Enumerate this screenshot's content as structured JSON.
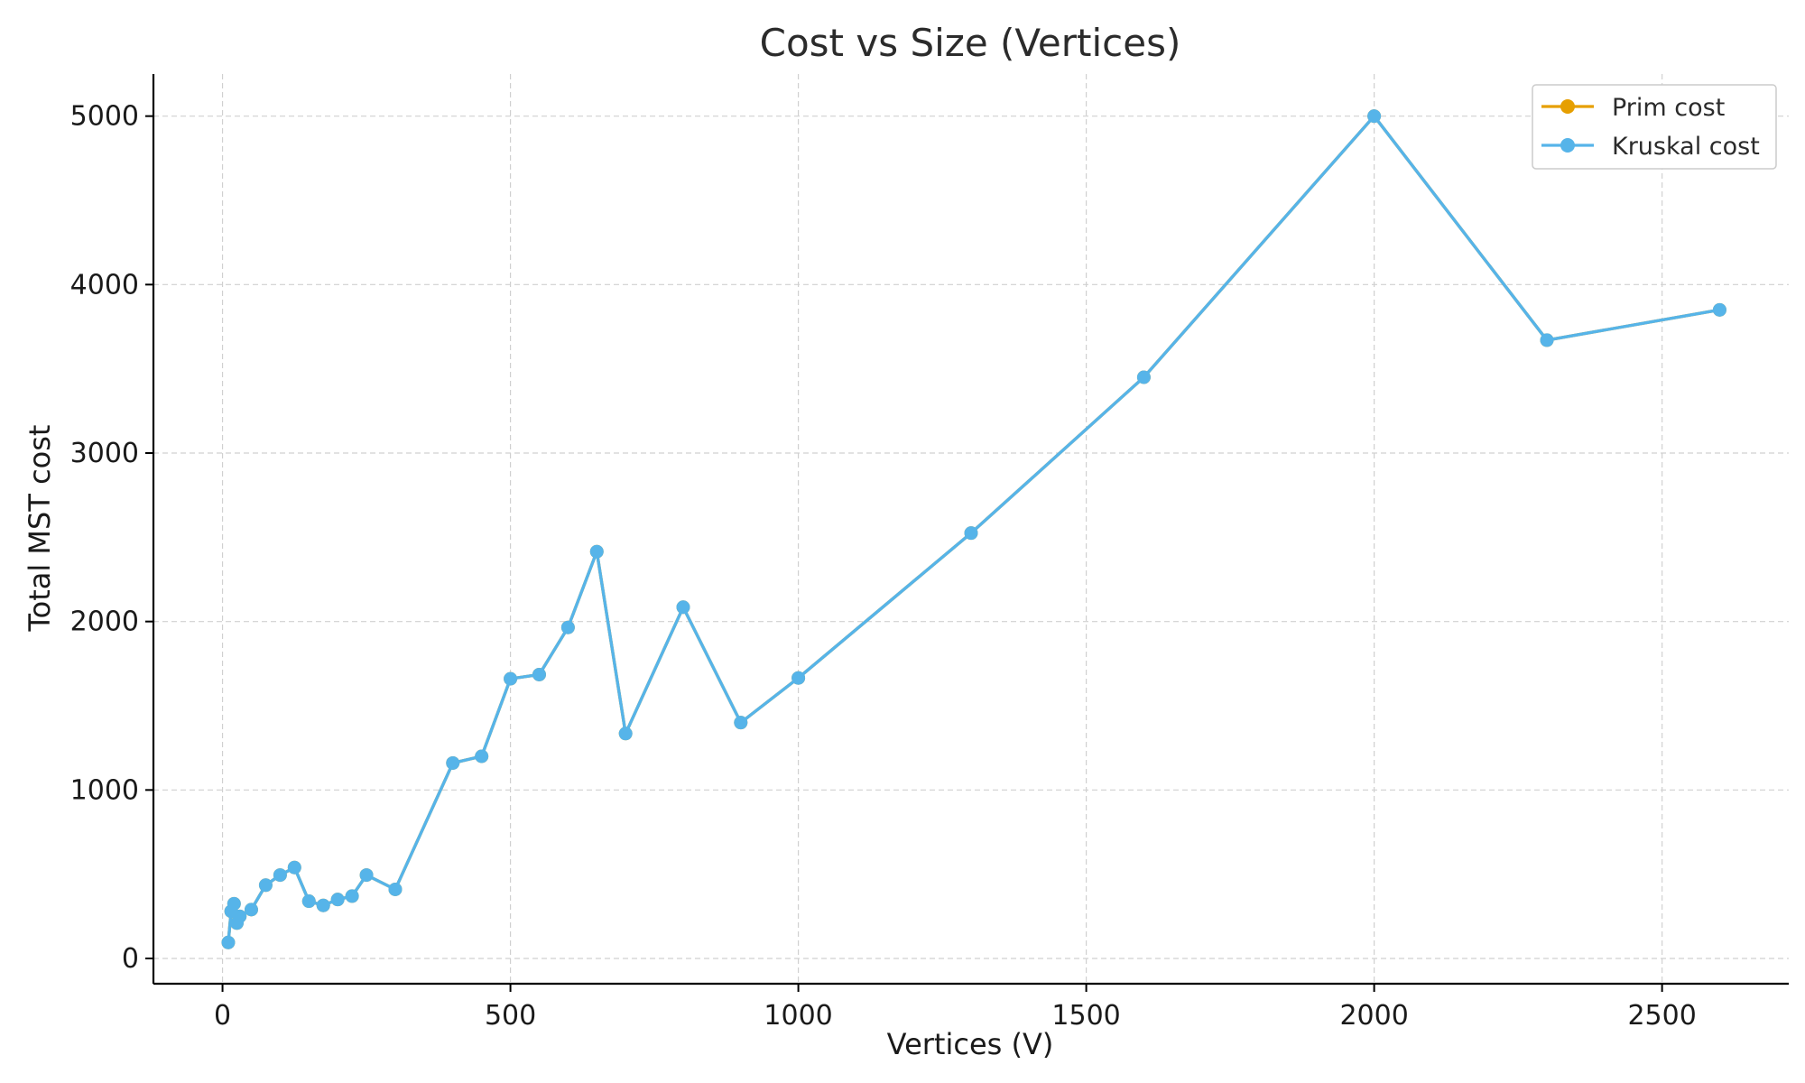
{
  "chart_data": {
    "type": "line",
    "title": "Cost vs Size (Vertices)",
    "xlabel": "Vertices (V)",
    "ylabel": "Total MST cost",
    "xlim": [
      -120,
      2720
    ],
    "ylim": [
      -150,
      5250
    ],
    "xticks": [
      0,
      500,
      1000,
      1500,
      2000,
      2500
    ],
    "yticks": [
      0,
      1000,
      2000,
      3000,
      4000,
      5000
    ],
    "grid": true,
    "legend_position": "top-right",
    "series": [
      {
        "name": "Prim cost",
        "color": "#E69F00",
        "x": [
          10,
          15,
          20,
          25,
          30,
          50,
          75,
          100,
          125,
          150,
          175,
          200,
          225,
          250,
          300,
          400,
          450,
          500,
          550,
          600,
          650,
          700,
          800,
          900,
          1000,
          1300,
          1600,
          2000,
          2300,
          2600
        ],
        "y": [
          95,
          280,
          325,
          210,
          250,
          290,
          435,
          495,
          540,
          340,
          315,
          350,
          370,
          495,
          410,
          1160,
          1200,
          1660,
          1685,
          1965,
          2415,
          1335,
          2085,
          1400,
          1665,
          2525,
          3450,
          5000,
          3670,
          3850
        ]
      },
      {
        "name": "Kruskal cost",
        "color": "#56B4E9",
        "x": [
          10,
          15,
          20,
          25,
          30,
          50,
          75,
          100,
          125,
          150,
          175,
          200,
          225,
          250,
          300,
          400,
          450,
          500,
          550,
          600,
          650,
          700,
          800,
          900,
          1000,
          1300,
          1600,
          2000,
          2300,
          2600
        ],
        "y": [
          95,
          280,
          325,
          210,
          250,
          290,
          435,
          495,
          540,
          340,
          315,
          350,
          370,
          495,
          410,
          1160,
          1200,
          1660,
          1685,
          1965,
          2415,
          1335,
          2085,
          1400,
          1665,
          2525,
          3450,
          5000,
          3670,
          3850
        ]
      }
    ]
  }
}
